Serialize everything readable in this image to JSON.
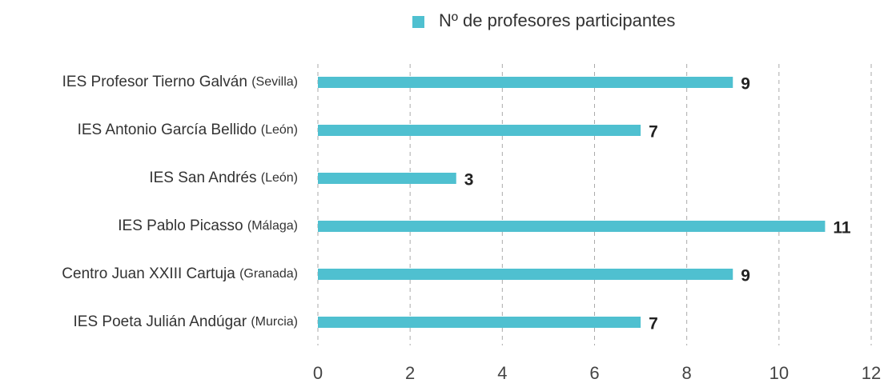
{
  "chart_data": {
    "type": "bar",
    "orientation": "horizontal",
    "categories": [
      "IES Profesor Tierno Galván (Sevilla)",
      "IES Antonio García Bellido (León)",
      "IES San Andrés (León)",
      "IES Pablo Picasso (Málaga)",
      "Centro Juan XXIII Cartuja (Granada)",
      "IES Poeta Julián Andúgar (Murcia)"
    ],
    "series": [
      {
        "name": "Nº de profesores participantes",
        "color": "#4fc0d0",
        "values": [
          9,
          7,
          3,
          11,
          9,
          7
        ]
      }
    ],
    "xlim": [
      0,
      12
    ],
    "xticks": [
      0,
      2,
      4,
      6,
      8,
      10,
      12
    ],
    "grid": true,
    "legend": "top"
  }
}
